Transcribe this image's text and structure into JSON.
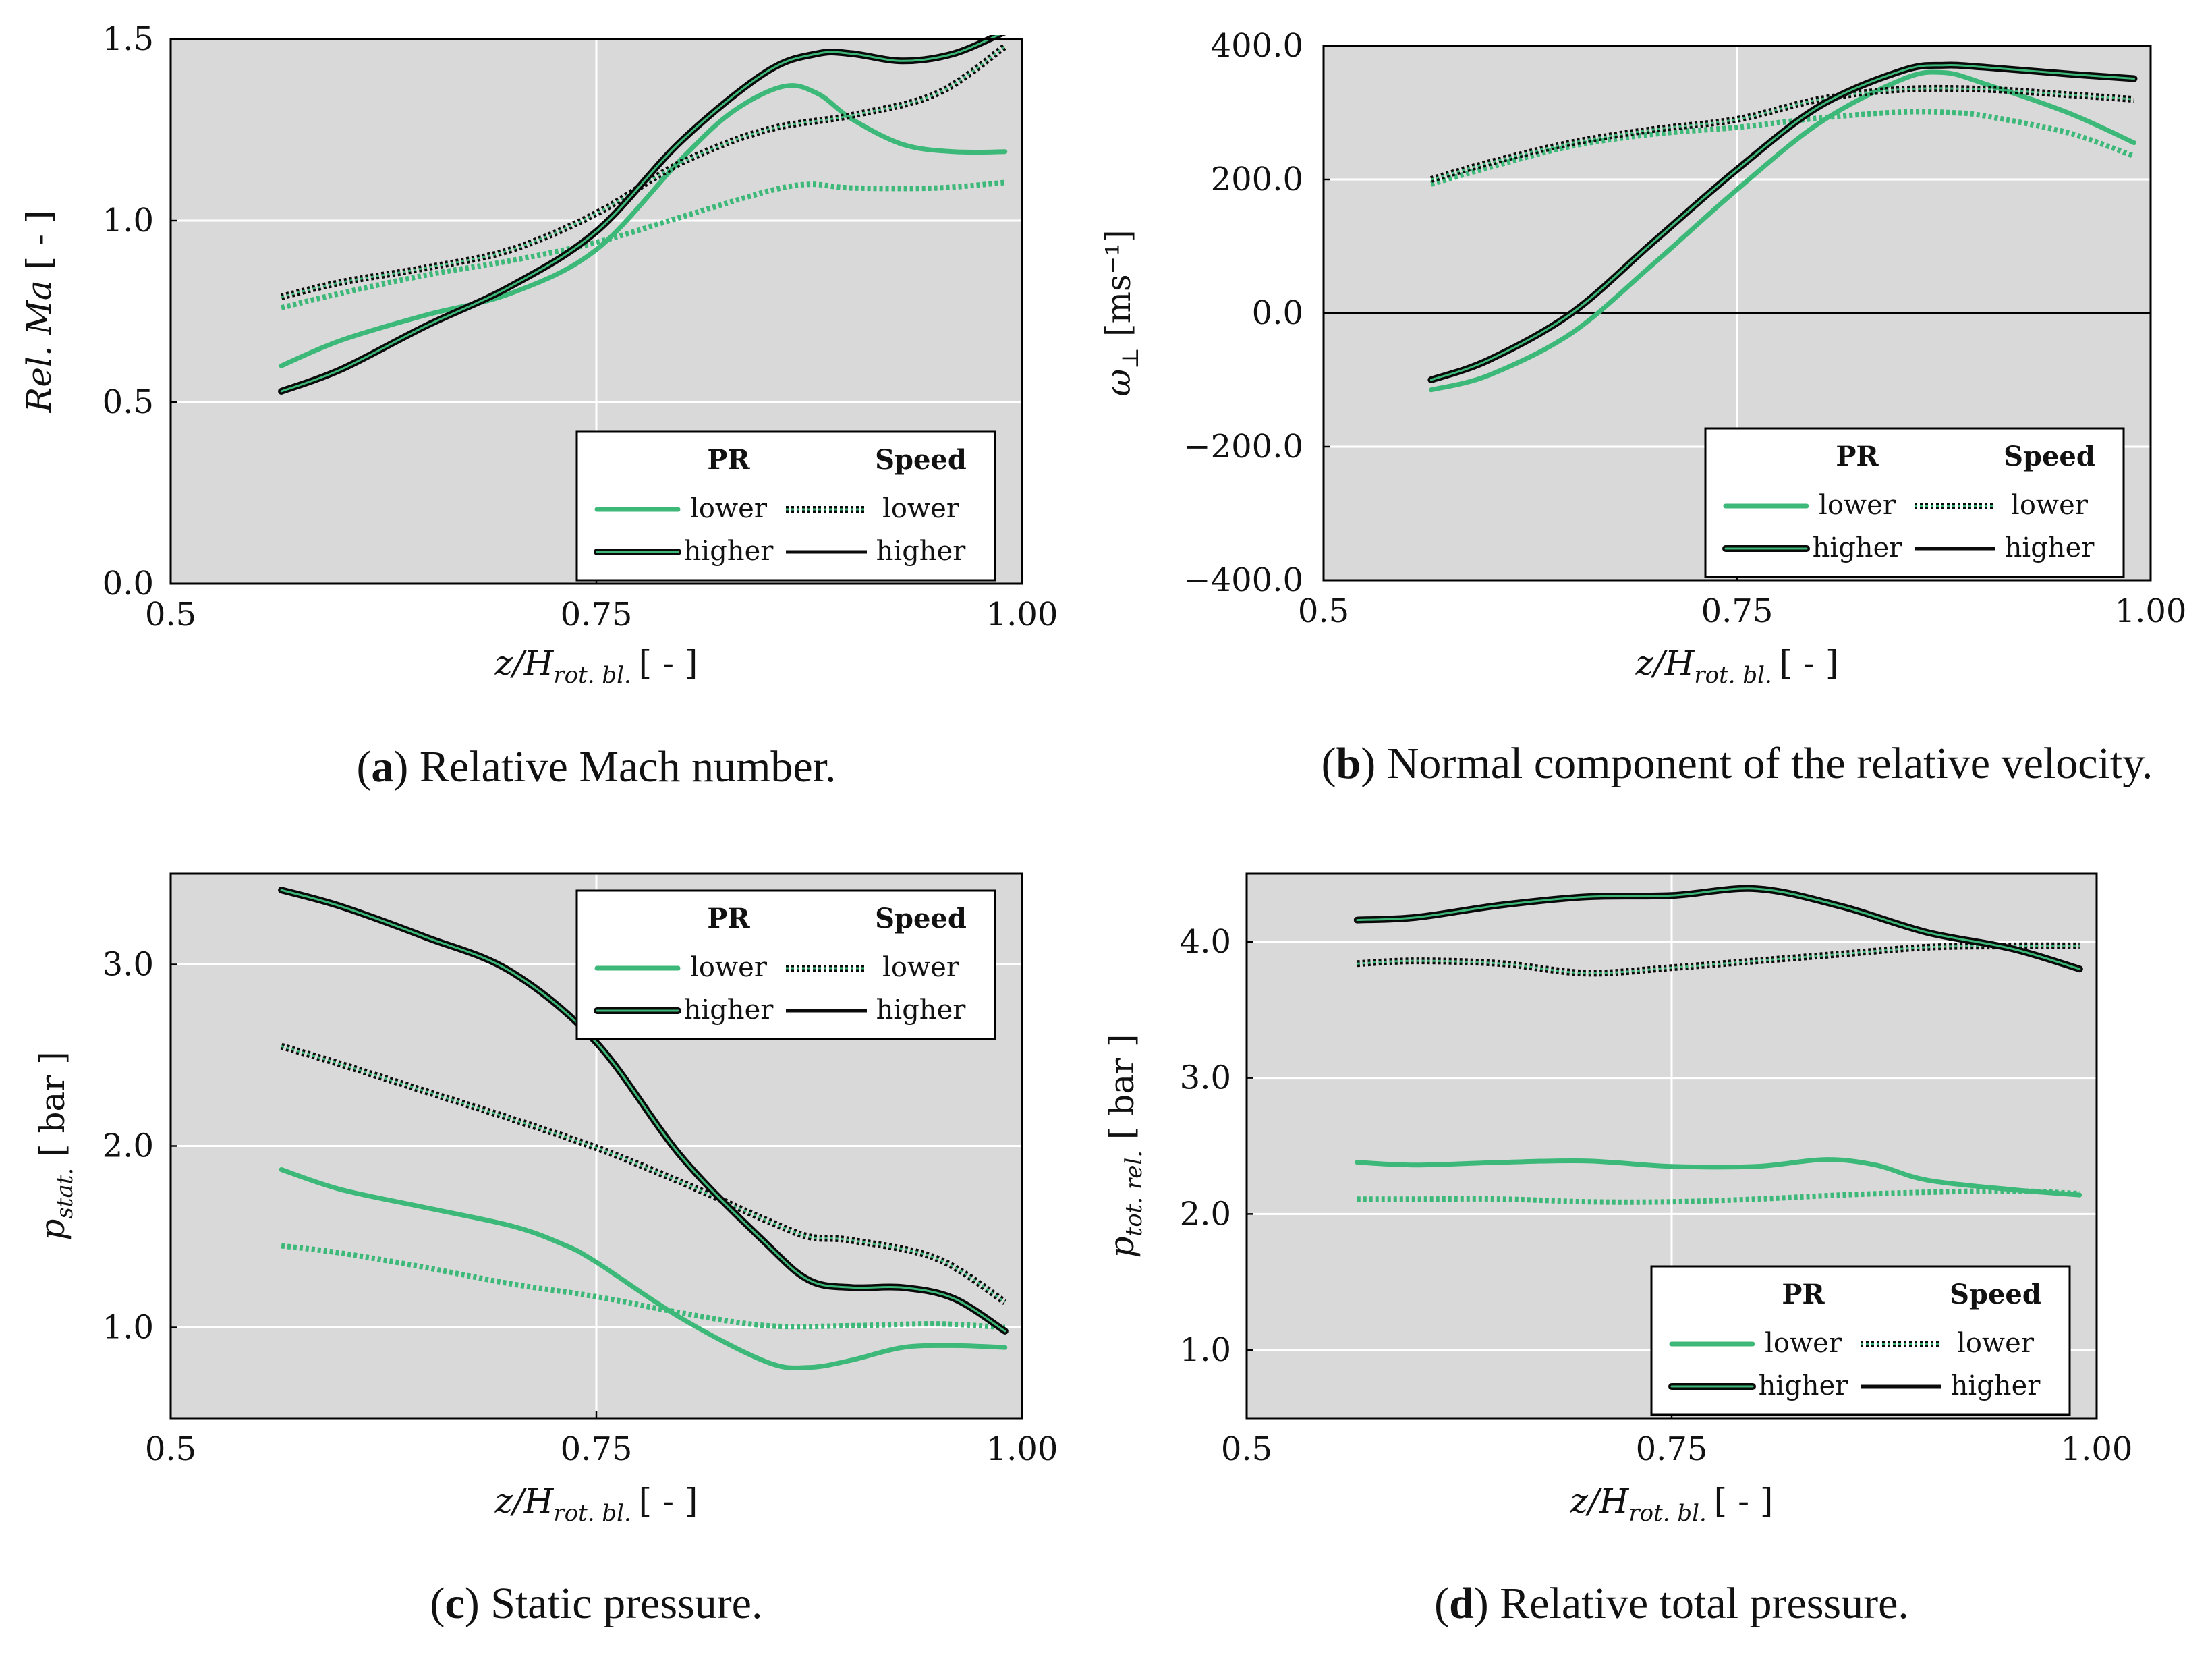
{
  "chart_data": [
    {
      "type": "line",
      "panel": "a",
      "caption_letter": "a",
      "caption_text": "Relative Mach number.",
      "ylabel": "Rel. Ma [ - ]",
      "ylabel_parts": {
        "main": "Rel. Ma",
        "sub": "",
        "sup": "",
        "unit": "[ - ]"
      },
      "xlabel": "z/H_rot. bl. [ - ]",
      "xlabel_parts": {
        "main": "z/H",
        "sub": "rot. bl.",
        "unit": "[ - ]"
      },
      "xlim": [
        0.5,
        1.0
      ],
      "ylim": [
        0.0,
        1.5
      ],
      "xticks": [
        0.5,
        0.75,
        1.0
      ],
      "xtick_labels": [
        "0.5",
        "0.75",
        "1.00"
      ],
      "yticks": [
        0.0,
        0.5,
        1.0,
        1.5
      ],
      "ytick_labels": [
        "0.0",
        "0.5",
        "1.0",
        "1.5"
      ],
      "zero_line": false,
      "legend": {
        "position": "bottom-right",
        "col1_title": "PR",
        "col2_title": "Speed",
        "lower": "lower",
        "higher": "higher"
      },
      "series": [
        {
          "name": "lower PR, lower speed",
          "style": "green-dotted",
          "x": [
            0.565,
            0.6,
            0.65,
            0.7,
            0.75,
            0.8,
            0.85,
            0.875,
            0.9,
            0.95,
            0.99
          ],
          "y": [
            0.76,
            0.8,
            0.85,
            0.89,
            0.94,
            1.01,
            1.08,
            1.1,
            1.09,
            1.09,
            1.105
          ]
        },
        {
          "name": "lower PR, higher speed",
          "style": "green-solid",
          "x": [
            0.565,
            0.6,
            0.65,
            0.7,
            0.75,
            0.8,
            0.83,
            0.86,
            0.88,
            0.9,
            0.93,
            0.96,
            0.99
          ],
          "y": [
            0.6,
            0.67,
            0.74,
            0.8,
            0.92,
            1.17,
            1.3,
            1.37,
            1.35,
            1.28,
            1.21,
            1.19,
            1.19
          ]
        },
        {
          "name": "higher PR, lower speed",
          "style": "black-dotted",
          "x": [
            0.565,
            0.6,
            0.65,
            0.7,
            0.75,
            0.8,
            0.85,
            0.9,
            0.95,
            0.99
          ],
          "y": [
            0.79,
            0.83,
            0.87,
            0.92,
            1.02,
            1.16,
            1.25,
            1.29,
            1.35,
            1.48
          ]
        },
        {
          "name": "higher PR, higher speed",
          "style": "black-double",
          "x": [
            0.565,
            0.6,
            0.65,
            0.7,
            0.75,
            0.8,
            0.85,
            0.88,
            0.9,
            0.93,
            0.96,
            0.99
          ],
          "y": [
            0.53,
            0.59,
            0.71,
            0.82,
            0.97,
            1.22,
            1.41,
            1.46,
            1.46,
            1.44,
            1.46,
            1.52
          ]
        }
      ]
    },
    {
      "type": "line",
      "panel": "b",
      "caption_letter": "b",
      "caption_text": "Normal component of the relative velocity.",
      "ylabel": "ω⊥ [ms⁻¹]",
      "ylabel_parts": {
        "main": "ω",
        "sub": "⊥",
        "sup": "",
        "unit": "[ms⁻¹]"
      },
      "xlabel": "z/H_rot. bl. [ - ]",
      "xlabel_parts": {
        "main": "z/H",
        "sub": "rot. bl.",
        "unit": "[ - ]"
      },
      "xlim": [
        0.5,
        1.0
      ],
      "ylim": [
        -400.0,
        400.0
      ],
      "xticks": [
        0.5,
        0.75,
        1.0
      ],
      "xtick_labels": [
        "0.5",
        "0.75",
        "1.00"
      ],
      "yticks": [
        -400.0,
        -200.0,
        0.0,
        200.0,
        400.0
      ],
      "ytick_labels": [
        "−400.0",
        "−200.0",
        "0.0",
        "200.0",
        "400.0"
      ],
      "zero_line": true,
      "legend": {
        "position": "bottom-right",
        "col1_title": "PR",
        "col2_title": "Speed",
        "lower": "lower",
        "higher": "higher"
      },
      "series": [
        {
          "name": "lower PR, lower speed",
          "style": "green-dotted",
          "x": [
            0.565,
            0.6,
            0.65,
            0.7,
            0.75,
            0.8,
            0.85,
            0.88,
            0.9,
            0.95,
            0.99
          ],
          "y": [
            193,
            218,
            250,
            268,
            278,
            292,
            301,
            300,
            295,
            270,
            235
          ]
        },
        {
          "name": "lower PR, higher speed",
          "style": "green-solid",
          "x": [
            0.565,
            0.6,
            0.65,
            0.7,
            0.75,
            0.8,
            0.85,
            0.875,
            0.9,
            0.95,
            0.99
          ],
          "y": [
            -115,
            -93,
            -30,
            75,
            185,
            285,
            350,
            360,
            343,
            300,
            255
          ]
        },
        {
          "name": "higher PR, lower speed",
          "style": "black-dotted",
          "x": [
            0.565,
            0.6,
            0.65,
            0.7,
            0.75,
            0.8,
            0.85,
            0.9,
            0.95,
            0.99
          ],
          "y": [
            200,
            225,
            255,
            275,
            290,
            320,
            335,
            335,
            327,
            320
          ]
        },
        {
          "name": "higher PR, higher speed",
          "style": "black-double",
          "x": [
            0.565,
            0.6,
            0.65,
            0.7,
            0.75,
            0.8,
            0.85,
            0.875,
            0.9,
            0.95,
            0.99
          ],
          "y": [
            -100,
            -70,
            0,
            108,
            215,
            310,
            363,
            371,
            368,
            358,
            351
          ]
        }
      ]
    },
    {
      "type": "line",
      "panel": "c",
      "caption_letter": "c",
      "caption_text": "Static pressure.",
      "ylabel": "p_stat. [ bar ]",
      "ylabel_parts": {
        "main": "p",
        "sub": "stat.",
        "sup": "",
        "unit": "[ bar ]"
      },
      "xlabel": "z/H_rot. bl. [ - ]",
      "xlabel_parts": {
        "main": "z/H",
        "sub": "rot. bl.",
        "unit": "[ - ]"
      },
      "xlim": [
        0.5,
        1.0
      ],
      "ylim": [
        0.5,
        3.5
      ],
      "xticks": [
        0.5,
        0.75,
        1.0
      ],
      "xtick_labels": [
        "0.5",
        "0.75",
        "1.00"
      ],
      "yticks": [
        1.0,
        2.0,
        3.0
      ],
      "ytick_labels": [
        "1.0",
        "2.0",
        "3.0"
      ],
      "zero_line": false,
      "legend": {
        "position": "top-right",
        "col1_title": "PR",
        "col2_title": "Speed",
        "lower": "lower",
        "higher": "higher"
      },
      "series": [
        {
          "name": "lower PR, lower speed",
          "style": "green-dotted",
          "x": [
            0.565,
            0.6,
            0.65,
            0.7,
            0.75,
            0.8,
            0.85,
            0.9,
            0.95,
            0.99
          ],
          "y": [
            1.45,
            1.41,
            1.33,
            1.24,
            1.17,
            1.08,
            1.01,
            1.01,
            1.02,
            1.0
          ]
        },
        {
          "name": "lower PR, higher speed",
          "style": "green-solid",
          "x": [
            0.565,
            0.6,
            0.65,
            0.7,
            0.73,
            0.75,
            0.8,
            0.85,
            0.875,
            0.9,
            0.93,
            0.96,
            0.99
          ],
          "y": [
            1.87,
            1.76,
            1.66,
            1.56,
            1.46,
            1.36,
            1.05,
            0.81,
            0.78,
            0.82,
            0.89,
            0.9,
            0.89
          ]
        },
        {
          "name": "higher PR, lower speed",
          "style": "black-dotted",
          "x": [
            0.565,
            0.6,
            0.65,
            0.7,
            0.75,
            0.8,
            0.85,
            0.875,
            0.9,
            0.95,
            0.99
          ],
          "y": [
            2.55,
            2.45,
            2.3,
            2.15,
            1.99,
            1.8,
            1.59,
            1.5,
            1.48,
            1.38,
            1.14
          ]
        },
        {
          "name": "higher PR, higher speed",
          "style": "black-double",
          "x": [
            0.565,
            0.6,
            0.65,
            0.7,
            0.75,
            0.8,
            0.85,
            0.875,
            0.9,
            0.93,
            0.96,
            0.99
          ],
          "y": [
            3.41,
            3.32,
            3.15,
            2.96,
            2.57,
            1.94,
            1.46,
            1.26,
            1.22,
            1.22,
            1.16,
            0.98
          ]
        }
      ]
    },
    {
      "type": "line",
      "panel": "d",
      "caption_letter": "d",
      "caption_text": "Relative total pressure.",
      "ylabel": "p_tot. rel. [ bar ]",
      "ylabel_parts": {
        "main": "p",
        "sub": "tot. rel.",
        "sup": "",
        "unit": "[ bar ]"
      },
      "xlabel": "z/H_rot. bl. [ - ]",
      "xlabel_parts": {
        "main": "z/H",
        "sub": "rot. bl.",
        "unit": "[ - ]"
      },
      "xlim": [
        0.5,
        1.0
      ],
      "ylim": [
        0.5,
        4.5
      ],
      "xticks": [
        0.5,
        0.75,
        1.0
      ],
      "xtick_labels": [
        "0.5",
        "0.75",
        "1.00"
      ],
      "yticks": [
        1.0,
        2.0,
        3.0,
        4.0
      ],
      "ytick_labels": [
        "1.0",
        "2.0",
        "3.0",
        "4.0"
      ],
      "zero_line": false,
      "legend": {
        "position": "bottom-right",
        "col1_title": "PR",
        "col2_title": "Speed",
        "lower": "lower",
        "higher": "higher"
      },
      "series": [
        {
          "name": "lower PR, lower speed",
          "style": "green-dotted",
          "x": [
            0.565,
            0.6,
            0.65,
            0.7,
            0.75,
            0.8,
            0.85,
            0.9,
            0.95,
            0.99
          ],
          "y": [
            2.11,
            2.11,
            2.11,
            2.09,
            2.09,
            2.11,
            2.14,
            2.16,
            2.17,
            2.15
          ]
        },
        {
          "name": "lower PR, higher speed",
          "style": "green-solid",
          "x": [
            0.565,
            0.6,
            0.65,
            0.7,
            0.75,
            0.8,
            0.84,
            0.87,
            0.9,
            0.95,
            0.99
          ],
          "y": [
            2.38,
            2.36,
            2.38,
            2.39,
            2.35,
            2.35,
            2.4,
            2.36,
            2.25,
            2.18,
            2.14
          ]
        },
        {
          "name": "higher PR, lower speed",
          "style": "black-dotted",
          "x": [
            0.565,
            0.6,
            0.65,
            0.7,
            0.75,
            0.8,
            0.85,
            0.9,
            0.95,
            0.99
          ],
          "y": [
            3.84,
            3.86,
            3.84,
            3.77,
            3.81,
            3.86,
            3.91,
            3.96,
            3.97,
            3.97
          ]
        },
        {
          "name": "higher PR, higher speed",
          "style": "black-double",
          "x": [
            0.565,
            0.6,
            0.65,
            0.7,
            0.75,
            0.8,
            0.85,
            0.9,
            0.95,
            0.99
          ],
          "y": [
            4.16,
            4.18,
            4.27,
            4.33,
            4.34,
            4.39,
            4.26,
            4.07,
            3.95,
            3.8
          ]
        }
      ]
    }
  ]
}
